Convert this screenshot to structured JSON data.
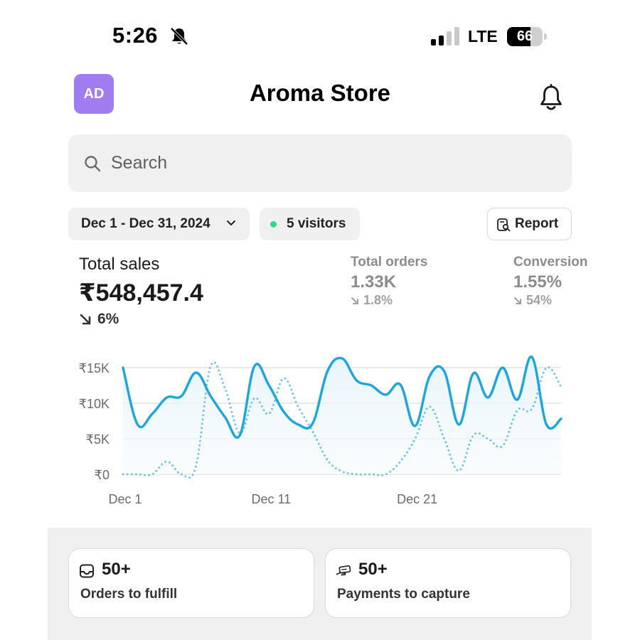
{
  "status_bar": {
    "time": "5:26",
    "network": "LTE",
    "battery": "66",
    "battery_level": 0.66,
    "signal_bars_active": 2,
    "signal_bars_total": 4,
    "mute_icon": "bell-slash-icon"
  },
  "header": {
    "avatar_initials": "AD",
    "avatar_color": "#a07cf0",
    "title": "Aroma Store",
    "notification_icon": "bell-icon"
  },
  "search": {
    "placeholder": "Search",
    "icon": "search-icon"
  },
  "filters": {
    "date_range": "Dec 1 - Dec 31, 2024",
    "visitors": "5 visitors",
    "visitors_dot_color": "#2fd98a",
    "report_label": "Report"
  },
  "metrics": {
    "total_sales": {
      "label": "Total sales",
      "value": "₹548,457.4",
      "change": "6%",
      "trend": "down"
    },
    "total_orders": {
      "label": "Total orders",
      "value": "1.33K",
      "change": "1.8%",
      "trend": "down"
    },
    "conversion": {
      "label": "Conversion",
      "value": "1.55%",
      "change": "54%",
      "trend": "down"
    }
  },
  "chart_data": {
    "type": "line",
    "title": "",
    "xlabel": "",
    "ylabel": "",
    "x": [
      1,
      2,
      3,
      4,
      5,
      6,
      7,
      8,
      9,
      10,
      11,
      12,
      13,
      14,
      15,
      16,
      17,
      18,
      19,
      20,
      21,
      22,
      23,
      24,
      25,
      26,
      27,
      28,
      29,
      30,
      31
    ],
    "x_tick_labels": [
      "Dec 1",
      "Dec 11",
      "Dec 21"
    ],
    "x_tick_positions": [
      1,
      11,
      21
    ],
    "y_tick_labels": [
      "₹0",
      "₹5K",
      "₹10K",
      "₹15K"
    ],
    "y_ticks": [
      0,
      5000,
      10000,
      15000
    ],
    "ylim": [
      0,
      15000
    ],
    "grid": true,
    "accent_color": "#1aa7e0",
    "series": [
      {
        "style": "solid",
        "values": [
          15000,
          7000,
          8500,
          10800,
          11000,
          14300,
          11000,
          8000,
          5500,
          15200,
          12500,
          8800,
          7000,
          7200,
          14500,
          16300,
          13200,
          12500,
          11200,
          12600,
          6800,
          13800,
          14500,
          7000,
          14200,
          10800,
          15000,
          10500,
          16500,
          7000,
          7800
        ]
      },
      {
        "style": "dotted",
        "values": [
          0,
          0,
          0,
          1800,
          0,
          1200,
          15200,
          12000,
          5800,
          10700,
          8500,
          13500,
          9500,
          6000,
          2000,
          400,
          0,
          0,
          0,
          1800,
          5000,
          9500,
          5000,
          500,
          5500,
          5000,
          4000,
          9000,
          9200,
          15000,
          12300
        ]
      }
    ]
  },
  "tasks": {
    "orders": {
      "count": "50+",
      "label": "Orders to fulfill",
      "icon": "inbox-icon"
    },
    "payments": {
      "count": "50+",
      "label": "Payments to capture",
      "icon": "hand-money-icon"
    }
  }
}
